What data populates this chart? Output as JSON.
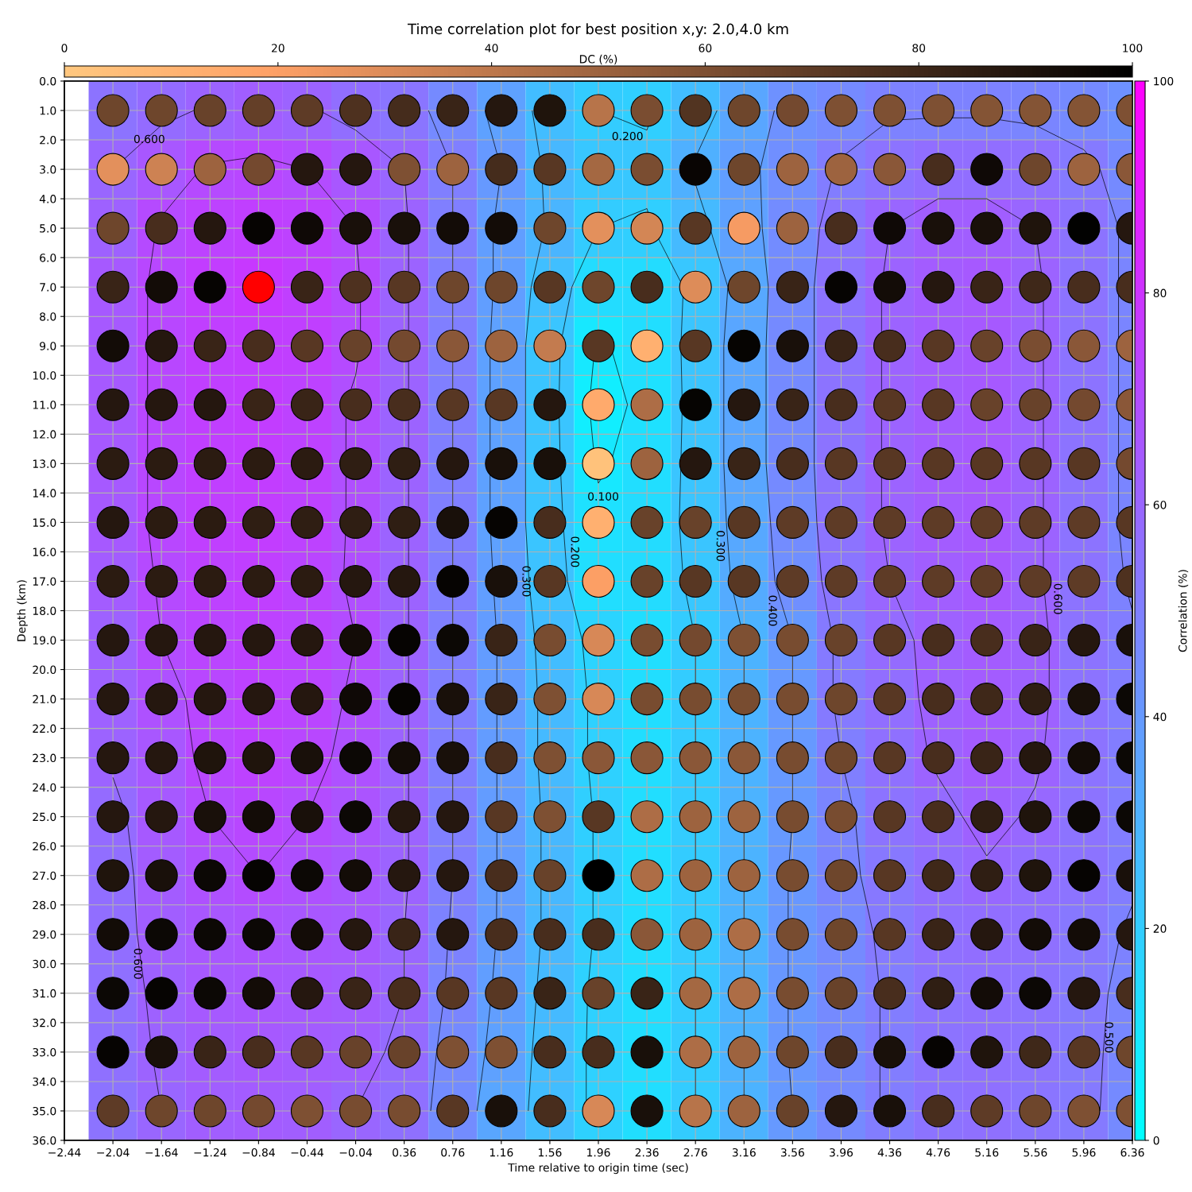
{
  "chart_data": [
    {
      "type": "heatmap",
      "title": "Time correlation plot for best position x,y: 2.0,4.0 km",
      "xlabel": "Time relative to origin time (sec)",
      "ylabel": "Depth (km)",
      "clabel": "Correlation (%)",
      "x": [
        -2.04,
        -1.64,
        -1.24,
        -0.84,
        -0.44,
        -0.04,
        0.36,
        0.76,
        1.16,
        1.56,
        1.96,
        2.36,
        2.76,
        3.16,
        3.56,
        3.96,
        4.36,
        4.76,
        5.16,
        5.56,
        5.96,
        6.36
      ],
      "y": [
        1,
        3,
        5,
        7,
        9,
        11,
        13,
        15,
        17,
        19,
        21,
        23,
        25,
        27,
        29,
        31,
        33,
        35
      ],
      "cells": [
        [
          55,
          58,
          61,
          63,
          61,
          57,
          54,
          46,
          37,
          26,
          20,
          19,
          26,
          35,
          43,
          46,
          49,
          49,
          49,
          48,
          46,
          43
        ],
        [
          60,
          66,
          71,
          72,
          70,
          66,
          60,
          50,
          40,
          28,
          22,
          22,
          31,
          38,
          44,
          51,
          55,
          57,
          57,
          56,
          52,
          46
        ],
        [
          62,
          71,
          74,
          75,
          74,
          70,
          61,
          50,
          38,
          29,
          20,
          19,
          27,
          37,
          45,
          54,
          60,
          63,
          63,
          60,
          55,
          48
        ],
        [
          65,
          72,
          76,
          78,
          75,
          71,
          61,
          50,
          38,
          25,
          14,
          14,
          22,
          34,
          46,
          55,
          61,
          64,
          65,
          61,
          55,
          48
        ],
        [
          65,
          72,
          75,
          76,
          75,
          71,
          61,
          50,
          37,
          23,
          9,
          13,
          23,
          35,
          46,
          55,
          61,
          64,
          65,
          61,
          55,
          48
        ],
        [
          65,
          72,
          75,
          76,
          74,
          69,
          61,
          50,
          37,
          23,
          7,
          12,
          23,
          35,
          46,
          55,
          61,
          64,
          65,
          61,
          55,
          48
        ],
        [
          65,
          72,
          75,
          76,
          74,
          69,
          61,
          50,
          37,
          23,
          9,
          13,
          23,
          35,
          46,
          55,
          61,
          64,
          65,
          61,
          55,
          48
        ],
        [
          65,
          72,
          75,
          76,
          74,
          69,
          61,
          50,
          37,
          23,
          12,
          14,
          23,
          34,
          45,
          55,
          61,
          64,
          65,
          61,
          55,
          48
        ],
        [
          64,
          71,
          74,
          75,
          73,
          69,
          61,
          50,
          38,
          24,
          13,
          14,
          22,
          33,
          44,
          54,
          60,
          63,
          65,
          61,
          55,
          49
        ],
        [
          62,
          70,
          73,
          74,
          73,
          70,
          61,
          50,
          39,
          26,
          17,
          13,
          20,
          30,
          40,
          52,
          58,
          62,
          64,
          62,
          55,
          51
        ],
        [
          62,
          68,
          72,
          74,
          73,
          69,
          61,
          50,
          39,
          27,
          18,
          13,
          20,
          30,
          40,
          52,
          57,
          62,
          64,
          62,
          55,
          51
        ],
        [
          61,
          66,
          72,
          74,
          72,
          68,
          61,
          50,
          39,
          27,
          18,
          13,
          20,
          30,
          40,
          50,
          56,
          61,
          64,
          61,
          55,
          51
        ],
        [
          58,
          65,
          70,
          72,
          70,
          67,
          61,
          50,
          39,
          28,
          19,
          13,
          20,
          30,
          40,
          48,
          55,
          58,
          62,
          59,
          55,
          51
        ],
        [
          57,
          64,
          68,
          70,
          68,
          66,
          61,
          50,
          39,
          28,
          19,
          13,
          20,
          30,
          41,
          48,
          53,
          57,
          59,
          57,
          55,
          51
        ],
        [
          57,
          63,
          66,
          67,
          66,
          65,
          60,
          49,
          39,
          28,
          19,
          13,
          20,
          30,
          41,
          46,
          52,
          56,
          57,
          56,
          53,
          49
        ],
        [
          56,
          62,
          65,
          66,
          65,
          64,
          60,
          48,
          38,
          27,
          18,
          13,
          20,
          30,
          41,
          46,
          51,
          55,
          56,
          55,
          52,
          48
        ],
        [
          56,
          61,
          64,
          65,
          64,
          63,
          58,
          46,
          37,
          26,
          18,
          13,
          20,
          30,
          41,
          46,
          51,
          55,
          56,
          55,
          52,
          47
        ],
        [
          55,
          60,
          63,
          64,
          63,
          60,
          56,
          45,
          35,
          26,
          18,
          13,
          20,
          30,
          40,
          46,
          51,
          55,
          56,
          54,
          52,
          46
        ]
      ],
      "clim": [
        0,
        100
      ],
      "cticks": [
        0,
        20,
        40,
        60,
        80,
        100
      ],
      "xlim": [
        -2.44,
        6.36
      ],
      "xticks": [
        {
          "value": -2.44,
          "label": "−2.44"
        },
        {
          "value": -2.04,
          "label": "−2.04"
        },
        {
          "value": -1.64,
          "label": "−1.64"
        },
        {
          "value": -1.24,
          "label": "−1.24"
        },
        {
          "value": -0.84,
          "label": "−0.84"
        },
        {
          "value": -0.44,
          "label": "−0.44"
        },
        {
          "value": -0.04,
          "label": "−0.04"
        },
        0.36,
        0.76,
        1.16,
        1.56,
        1.96,
        2.36,
        2.76,
        3.16,
        3.56,
        3.96,
        4.36,
        4.76,
        5.16,
        5.56,
        5.96,
        6.36
      ],
      "ylim": [
        36,
        0
      ],
      "yticks": [
        {
          "value": 0,
          "label": "0.0"
        },
        {
          "value": 1,
          "label": "1.0"
        },
        {
          "value": 2,
          "label": "2.0"
        },
        {
          "value": 3,
          "label": "3.0"
        },
        {
          "value": 4,
          "label": "4.0"
        },
        {
          "value": 5,
          "label": "5.0"
        },
        {
          "value": 6,
          "label": "6.0"
        },
        {
          "value": 7,
          "label": "7.0"
        },
        {
          "value": 8,
          "label": "8.0"
        },
        {
          "value": 9,
          "label": "9.0"
        },
        {
          "value": 10,
          "label": "10.0"
        },
        {
          "value": 11,
          "label": "11.0"
        },
        {
          "value": 12,
          "label": "12.0"
        },
        {
          "value": 13,
          "label": "13.0"
        },
        {
          "value": 14,
          "label": "14.0"
        },
        {
          "value": 15,
          "label": "15.0"
        },
        {
          "value": 16,
          "label": "16.0"
        },
        {
          "value": 17,
          "label": "17.0"
        },
        {
          "value": 18,
          "label": "18.0"
        },
        {
          "value": 19,
          "label": "19.0"
        },
        {
          "value": 20,
          "label": "20.0"
        },
        {
          "value": 21,
          "label": "21.0"
        },
        {
          "value": 22,
          "label": "22.0"
        },
        {
          "value": 23,
          "label": "23.0"
        },
        {
          "value": 24,
          "label": "24.0"
        },
        {
          "value": 25,
          "label": "25.0"
        },
        {
          "value": 26,
          "label": "26.0"
        },
        {
          "value": 27,
          "label": "27.0"
        },
        {
          "value": 28,
          "label": "28.0"
        },
        {
          "value": 29,
          "label": "29.0"
        },
        {
          "value": 30,
          "label": "30.0"
        },
        {
          "value": 31,
          "label": "31.0"
        },
        {
          "value": 32,
          "label": "32.0"
        },
        {
          "value": 33,
          "label": "33.0"
        },
        {
          "value": 34,
          "label": "34.0"
        },
        {
          "value": 35,
          "label": "35.0"
        },
        {
          "value": 36,
          "label": "36.0"
        }
      ],
      "grid": true,
      "annotations": [
        "0.600",
        "0.200",
        "0.100",
        "0.200",
        "0.300",
        "0.300",
        "0.400",
        "0.600",
        "0.600",
        "0.500"
      ]
    },
    {
      "type": "scatter",
      "clabel": "DC (%)",
      "clim": [
        0,
        100
      ],
      "cticks": [
        0,
        20,
        40,
        60,
        80,
        100
      ],
      "xlim": [
        -2.44,
        6.36
      ],
      "ylim": [
        36,
        0
      ],
      "tick_labels": false,
      "marker": "circle",
      "x": [
        -2.04,
        -1.64,
        -1.24,
        -0.84,
        -0.44,
        -0.04,
        0.36,
        0.76,
        1.16,
        1.56,
        1.96,
        2.36,
        2.76,
        3.16,
        3.56,
        3.96,
        4.36,
        4.76,
        5.16,
        5.56,
        5.96,
        6.36,
        -2.04,
        -1.64,
        -1.24,
        -0.84,
        -0.44,
        -0.04,
        0.36,
        0.76,
        1.16,
        1.56,
        1.96,
        2.36,
        2.76,
        3.16,
        3.56,
        3.96,
        4.36,
        4.76,
        5.16,
        5.56,
        5.96,
        6.36,
        -2.04,
        -1.64,
        -1.24,
        -0.84,
        -0.44,
        -0.04,
        0.36,
        0.76,
        1.16,
        1.56,
        1.96,
        2.36,
        2.76,
        3.16,
        3.56,
        3.96,
        4.36,
        4.76,
        5.16,
        5.56,
        5.96,
        6.36,
        -2.04,
        -1.64,
        -1.24,
        -0.44,
        -0.04,
        0.36,
        0.76,
        1.16,
        1.56,
        1.96,
        2.36,
        2.76,
        3.16,
        3.56,
        3.96,
        4.36,
        4.76,
        5.16,
        5.56,
        5.96,
        6.36,
        -2.04,
        -1.64,
        -1.24,
        -0.84,
        -0.44,
        -0.04,
        0.36,
        0.76,
        1.16,
        1.56,
        1.96,
        2.36,
        2.76,
        3.16,
        3.56,
        3.96,
        4.36,
        4.76,
        5.16,
        5.56,
        5.96,
        6.36,
        -2.04,
        -1.64,
        -1.24,
        -0.84,
        -0.44,
        -0.04,
        0.36,
        0.76,
        1.16,
        1.56,
        1.96,
        2.36,
        2.76,
        3.16,
        3.56,
        3.96,
        4.36,
        4.76,
        5.16,
        5.56,
        5.96,
        6.36,
        -2.04,
        -1.64,
        -1.24,
        -0.84,
        -0.44,
        -0.04,
        0.36,
        0.76,
        1.16,
        1.56,
        1.96,
        2.36,
        2.76,
        3.16,
        3.56,
        3.96,
        4.36,
        4.76,
        5.16,
        5.56,
        5.96,
        6.36,
        -2.04,
        -1.64,
        -1.24,
        -0.84,
        -0.44,
        -0.04,
        0.36,
        0.76,
        1.16,
        1.56,
        1.96,
        2.36,
        2.76,
        3.16,
        3.56,
        3.96,
        4.36,
        4.76,
        5.16,
        5.56,
        5.96,
        6.36,
        -2.04,
        -1.64,
        -1.24,
        -0.84,
        -0.44,
        -0.04,
        0.36,
        0.76,
        1.16,
        1.56,
        1.96,
        2.36,
        2.76,
        3.16,
        3.56,
        3.96,
        4.36,
        4.76,
        5.16,
        5.56,
        5.96,
        6.36,
        -2.04,
        -1.64,
        -1.24,
        -0.84,
        -0.44,
        -0.04,
        0.36,
        0.76,
        1.16,
        1.56,
        1.96,
        2.36,
        2.76,
        3.16,
        3.56,
        3.96,
        4.36,
        4.76,
        5.16,
        5.56,
        5.96,
        6.36,
        -2.04,
        -1.64,
        -1.24,
        -0.84,
        -0.44,
        -0.04,
        0.36,
        0.76,
        1.16,
        1.56,
        1.96,
        2.36,
        2.76,
        3.16,
        3.56,
        3.96,
        4.36,
        4.76,
        5.16,
        5.56,
        5.96,
        6.36,
        -2.04,
        -1.64,
        -1.24,
        -0.84,
        -0.44,
        -0.04,
        0.36,
        0.76,
        1.16,
        1.56,
        1.96,
        2.36,
        2.76,
        3.16,
        3.56,
        3.96,
        4.36,
        4.76,
        5.16,
        5.56,
        5.96,
        6.36,
        -2.04,
        -1.64,
        -1.24,
        -0.84,
        -0.44,
        -0.04,
        0.36,
        0.76,
        1.16,
        1.56,
        1.96,
        2.36,
        2.76,
        3.16,
        3.56,
        3.96,
        4.36,
        4.76,
        5.16,
        5.56,
        5.96,
        6.36,
        -2.04,
        -1.64,
        -1.24,
        -0.84,
        -0.44,
        -0.04,
        0.36,
        0.76,
        1.16,
        1.56,
        1.96,
        2.36,
        2.76,
        3.16,
        3.56,
        3.96,
        4.36,
        4.76,
        5.16,
        5.56,
        5.96,
        6.36,
        -2.04,
        -1.64,
        -1.24,
        -0.84,
        -0.44,
        -0.04,
        0.36,
        0.76,
        1.16,
        1.56,
        1.96,
        2.36,
        2.76,
        3.16,
        3.56,
        3.96,
        4.36,
        4.76,
        5.16,
        5.56,
        5.96,
        6.36,
        -2.04,
        -1.64,
        -1.24,
        -0.84,
        -0.44,
        -0.04,
        0.36,
        0.76,
        1.16,
        1.56,
        1.96,
        2.36,
        2.76,
        3.16,
        3.56,
        3.96,
        4.36,
        4.76,
        5.16,
        5.56,
        5.96,
        6.36,
        -2.04,
        -1.64,
        -1.24,
        -0.84,
        -0.44,
        -0.04,
        0.36,
        0.76,
        1.16,
        1.56,
        1.96,
        2.36,
        2.76,
        3.16,
        3.56,
        3.96,
        4.36,
        4.76,
        5.16,
        5.56,
        5.96,
        6.36,
        -2.04,
        -1.64,
        -1.24,
        -0.84,
        -0.44,
        -0.04,
        0.36,
        0.76,
        1.16,
        1.56,
        1.96,
        2.36,
        2.76,
        3.16,
        3.56,
        3.96,
        4.36,
        4.76,
        5.16,
        5.56,
        5.96,
        6.36
      ],
      "values": [
        1,
        1,
        1,
        1,
        1,
        1,
        1,
        1,
        1,
        1,
        1,
        1,
        1,
        1,
        1,
        1,
        1,
        1,
        1,
        1,
        1,
        1,
        3,
        3,
        3,
        3,
        3,
        3,
        3,
        3,
        3,
        3,
        3,
        3,
        3,
        3,
        3,
        3,
        3,
        3,
        3,
        3,
        3,
        3,
        5,
        5,
        5,
        5,
        5,
        5,
        5,
        5,
        5,
        5,
        5,
        5,
        5,
        5,
        5,
        5,
        5,
        5,
        5,
        5,
        5,
        5,
        7,
        7,
        7,
        7,
        7,
        7,
        7,
        7,
        7,
        7,
        7,
        7,
        7,
        7,
        7,
        7,
        7,
        7,
        7,
        7,
        7,
        9,
        9,
        9,
        9,
        9,
        9,
        9,
        9,
        9,
        9,
        9,
        9,
        9,
        9,
        9,
        9,
        9,
        9,
        9,
        9,
        9,
        9,
        11,
        11,
        11,
        11,
        11,
        11,
        11,
        11,
        11,
        11,
        11,
        11,
        11,
        11,
        11,
        11,
        11,
        11,
        11,
        11,
        11,
        11,
        13,
        13,
        13,
        13,
        13,
        13,
        13,
        13,
        13,
        13,
        13,
        13,
        13,
        13,
        13,
        13,
        13,
        13,
        13,
        13,
        13,
        13,
        15,
        15,
        15,
        15,
        15,
        15,
        15,
        15,
        15,
        15,
        15,
        15,
        15,
        15,
        15,
        15,
        15,
        15,
        15,
        15,
        15,
        15,
        17,
        17,
        17,
        17,
        17,
        17,
        17,
        17,
        17,
        17,
        17,
        17,
        17,
        17,
        17,
        17,
        17,
        17,
        17,
        17,
        17,
        17,
        19,
        19,
        19,
        19,
        19,
        19,
        19,
        19,
        19,
        19,
        19,
        19,
        19,
        19,
        19,
        19,
        19,
        19,
        19,
        19,
        19,
        19,
        21,
        21,
        21,
        21,
        21,
        21,
        21,
        21,
        21,
        21,
        21,
        21,
        21,
        21,
        21,
        21,
        21,
        21,
        21,
        21,
        21,
        21,
        23,
        23,
        23,
        23,
        23,
        23,
        23,
        23,
        23,
        23,
        23,
        23,
        23,
        23,
        23,
        23,
        23,
        23,
        23,
        23,
        23,
        23,
        25,
        25,
        25,
        25,
        25,
        25,
        25,
        25,
        25,
        25,
        25,
        25,
        25,
        25,
        25,
        25,
        25,
        25,
        25,
        25,
        25,
        25,
        27,
        27,
        27,
        27,
        27,
        27,
        27,
        27,
        27,
        27,
        27,
        27,
        27,
        27,
        27,
        27,
        27,
        27,
        27,
        27,
        27,
        27,
        29,
        29,
        29,
        29,
        29,
        29,
        29,
        29,
        29,
        29,
        29,
        29,
        29,
        29,
        29,
        29,
        29,
        29,
        29,
        29,
        29,
        29,
        31,
        31,
        31,
        31,
        31,
        31,
        31,
        31,
        31,
        31,
        31,
        31,
        31,
        31,
        31,
        31,
        31,
        31,
        31,
        31,
        31,
        31,
        33,
        33,
        33,
        33,
        33,
        33,
        33,
        33,
        33,
        33,
        33,
        33,
        33,
        33,
        33,
        33,
        33,
        33,
        33,
        33,
        33,
        33,
        35,
        35,
        35,
        35,
        35,
        35,
        35,
        35,
        35,
        35,
        35,
        35,
        35,
        35,
        35,
        35,
        35,
        35,
        35,
        35,
        35,
        35
      ],
      "cvalues": [
        65,
        65,
        67,
        68,
        70,
        75,
        78,
        82,
        88,
        90,
        42,
        61,
        74,
        65,
        63,
        60,
        60,
        60,
        58,
        58,
        58,
        60,
        28,
        35,
        50,
        63,
        88,
        88,
        60,
        50,
        78,
        72,
        48,
        61,
        97,
        65,
        50,
        50,
        56,
        77,
        95,
        65,
        50,
        56,
        65,
        77,
        88,
        98,
        95,
        92,
        92,
        94,
        94,
        65,
        28,
        33,
        72,
        22,
        50,
        77,
        95,
        92,
        92,
        90,
        99,
        88,
        82,
        94,
        98,
        82,
        75,
        72,
        65,
        65,
        72,
        65,
        77,
        30,
        65,
        82,
        98,
        94,
        88,
        82,
        80,
        77,
        77,
        94,
        88,
        82,
        77,
        72,
        67,
        63,
        56,
        50,
        38,
        72,
        12,
        72,
        98,
        92,
        82,
        77,
        72,
        67,
        61,
        56,
        50,
        88,
        88,
        88,
        82,
        82,
        77,
        77,
        72,
        72,
        88,
        15,
        45,
        98,
        88,
        82,
        77,
        72,
        72,
        67,
        67,
        63,
        56,
        86,
        86,
        86,
        86,
        86,
        85,
        85,
        88,
        92,
        92,
        3,
        50,
        88,
        82,
        77,
        72,
        72,
        72,
        72,
        72,
        72,
        63,
        88,
        86,
        86,
        85,
        85,
        85,
        85,
        92,
        98,
        77,
        12,
        67,
        67,
        72,
        70,
        70,
        70,
        70,
        70,
        70,
        70,
        72,
        86,
        86,
        86,
        86,
        86,
        88,
        88,
        98,
        92,
        72,
        20,
        67,
        72,
        72,
        70,
        70,
        70,
        70,
        70,
        70,
        70,
        75,
        88,
        88,
        88,
        88,
        88,
        94,
        98,
        96,
        82,
        62,
        32,
        62,
        63,
        60,
        62,
        67,
        72,
        77,
        77,
        82,
        88,
        92,
        88,
        88,
        88,
        88,
        88,
        95,
        98,
        92,
        82,
        60,
        32,
        62,
        62,
        62,
        62,
        65,
        72,
        77,
        80,
        85,
        92,
        96,
        88,
        88,
        90,
        90,
        92,
        96,
        94,
        92,
        77,
        60,
        56,
        56,
        56,
        56,
        62,
        65,
        72,
        77,
        82,
        88,
        94,
        96,
        88,
        88,
        92,
        94,
        92,
        96,
        88,
        88,
        72,
        60,
        72,
        45,
        50,
        50,
        62,
        62,
        72,
        77,
        85,
        90,
        96,
        96,
        90,
        92,
        96,
        98,
        96,
        94,
        88,
        88,
        77,
        67,
        100,
        45,
        50,
        50,
        62,
        65,
        72,
        80,
        85,
        90,
        98,
        92,
        94,
        96,
        96,
        96,
        94,
        88,
        82,
        88,
        77,
        77,
        77,
        56,
        50,
        45,
        62,
        65,
        72,
        82,
        88,
        94,
        94,
        88,
        96,
        98,
        96,
        94,
        88,
        82,
        77,
        72,
        72,
        82,
        67,
        82,
        48,
        45,
        62,
        67,
        77,
        85,
        94,
        96,
        88,
        77,
        98,
        92,
        82,
        77,
        72,
        67,
        67,
        60,
        60,
        77,
        77,
        92,
        45,
        50,
        65,
        77,
        92,
        98,
        90,
        80,
        72,
        65,
        70,
        65,
        65,
        63,
        60,
        62,
        62,
        72,
        92,
        77,
        32,
        92,
        42,
        50,
        67,
        88,
        92,
        77,
        70,
        65,
        60,
        60
      ]
    },
    {
      "type": "scatter",
      "x": [
        -0.84
      ],
      "values": [
        7
      ],
      "color": "#ff0000",
      "xlim": [
        -2.44,
        6.36
      ],
      "ylim": [
        36,
        0
      ],
      "tick_labels": false,
      "marker": "circle"
    }
  ]
}
